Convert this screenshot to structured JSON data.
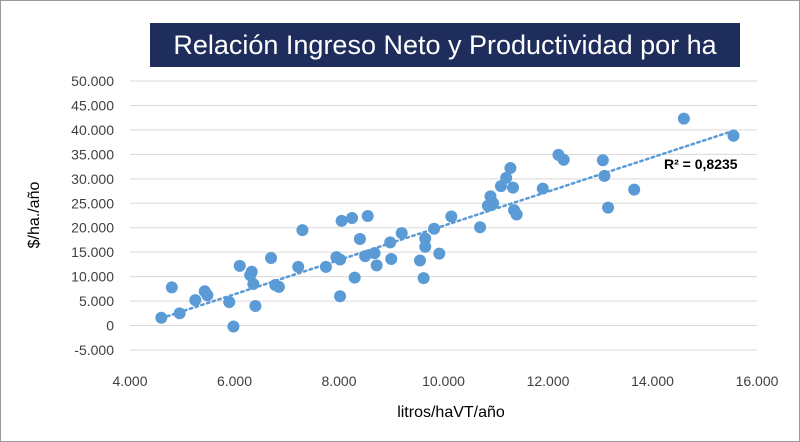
{
  "chart_data": {
    "type": "scatter",
    "title": "Relación Ingreso Neto y Productividad por ha",
    "xlabel": "litros/haVT/año",
    "ylabel": "$/ha./año",
    "xlim": [
      4000,
      16000
    ],
    "ylim": [
      -5000,
      50000
    ],
    "x_ticks": [
      4000,
      6000,
      8000,
      10000,
      12000,
      14000,
      16000
    ],
    "x_tick_labels": [
      "4.000",
      "6.000",
      "8.000",
      "10.000",
      "12.000",
      "14.000",
      "16.000"
    ],
    "y_ticks": [
      -5000,
      0,
      5000,
      10000,
      15000,
      20000,
      25000,
      30000,
      35000,
      40000,
      45000,
      50000
    ],
    "y_tick_labels": [
      "-5.000",
      "0",
      "5.000",
      "10.000",
      "15.000",
      "20.000",
      "25.000",
      "30.000",
      "35.000",
      "40.000",
      "45.000",
      "50.000"
    ],
    "grid": "horizontal",
    "point_color": "#5b9bd5",
    "trendline": {
      "type": "linear",
      "style": "dotted",
      "color": "#5b9bd5",
      "x_start": 4600,
      "y_start": 1500,
      "x_end": 15600,
      "y_end": 40000,
      "r2_label": "R² = 0,8235"
    },
    "points": [
      {
        "x": 4600,
        "y": 1600
      },
      {
        "x": 4800,
        "y": 7800
      },
      {
        "x": 4950,
        "y": 2500
      },
      {
        "x": 5250,
        "y": 5200
      },
      {
        "x": 5430,
        "y": 7000
      },
      {
        "x": 5480,
        "y": 6200
      },
      {
        "x": 5900,
        "y": 4800
      },
      {
        "x": 5980,
        "y": -200
      },
      {
        "x": 6100,
        "y": 12200
      },
      {
        "x": 6300,
        "y": 10300
      },
      {
        "x": 6330,
        "y": 11000
      },
      {
        "x": 6360,
        "y": 8500
      },
      {
        "x": 6400,
        "y": 4000
      },
      {
        "x": 6700,
        "y": 13800
      },
      {
        "x": 6780,
        "y": 8300
      },
      {
        "x": 6850,
        "y": 7900
      },
      {
        "x": 7220,
        "y": 12000
      },
      {
        "x": 7300,
        "y": 19500
      },
      {
        "x": 7750,
        "y": 12000
      },
      {
        "x": 7950,
        "y": 14000
      },
      {
        "x": 8020,
        "y": 13500
      },
      {
        "x": 8020,
        "y": 6000
      },
      {
        "x": 8050,
        "y": 21400
      },
      {
        "x": 8250,
        "y": 22000
      },
      {
        "x": 8300,
        "y": 9800
      },
      {
        "x": 8400,
        "y": 17700
      },
      {
        "x": 8500,
        "y": 14200
      },
      {
        "x": 8550,
        "y": 22400
      },
      {
        "x": 8680,
        "y": 14800
      },
      {
        "x": 8720,
        "y": 12300
      },
      {
        "x": 8980,
        "y": 17000
      },
      {
        "x": 9000,
        "y": 13600
      },
      {
        "x": 9200,
        "y": 18900
      },
      {
        "x": 9550,
        "y": 13300
      },
      {
        "x": 9620,
        "y": 9700
      },
      {
        "x": 9650,
        "y": 17800
      },
      {
        "x": 9650,
        "y": 16100
      },
      {
        "x": 9820,
        "y": 19800
      },
      {
        "x": 9920,
        "y": 14700
      },
      {
        "x": 10150,
        "y": 22300
      },
      {
        "x": 10700,
        "y": 20100
      },
      {
        "x": 10850,
        "y": 24500
      },
      {
        "x": 10900,
        "y": 26400
      },
      {
        "x": 10950,
        "y": 25000
      },
      {
        "x": 11100,
        "y": 28500
      },
      {
        "x": 11200,
        "y": 30200
      },
      {
        "x": 11280,
        "y": 32200
      },
      {
        "x": 11330,
        "y": 28200
      },
      {
        "x": 11350,
        "y": 23600
      },
      {
        "x": 11400,
        "y": 22700
      },
      {
        "x": 11900,
        "y": 28000
      },
      {
        "x": 12200,
        "y": 34900
      },
      {
        "x": 12300,
        "y": 33900
      },
      {
        "x": 13050,
        "y": 33800
      },
      {
        "x": 13080,
        "y": 30600
      },
      {
        "x": 13150,
        "y": 24100
      },
      {
        "x": 13650,
        "y": 27800
      },
      {
        "x": 14600,
        "y": 42300
      },
      {
        "x": 15550,
        "y": 38800
      }
    ]
  }
}
